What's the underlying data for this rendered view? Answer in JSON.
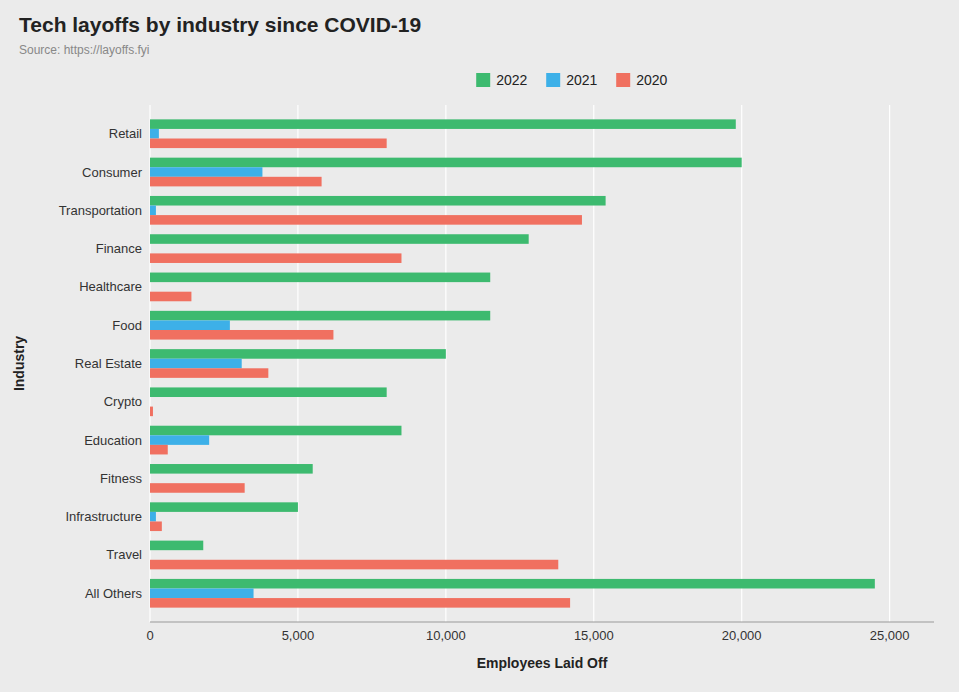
{
  "chart_data": {
    "type": "bar",
    "orientation": "horizontal",
    "title": "Tech layoffs by industry since COVID-19",
    "subtitle": "Source: https://layoffs.fyi",
    "xlabel": "Employees Laid Off",
    "ylabel": "Industry",
    "categories": [
      "All Others",
      "Travel",
      "Infrastructure",
      "Fitness",
      "Education",
      "Crypto",
      "Real Estate",
      "Food",
      "Healthcare",
      "Finance",
      "Transportation",
      "Consumer",
      "Retail"
    ],
    "series": [
      {
        "name": "2022",
        "color": "#3dba6f",
        "values": [
          24500,
          1800,
          5000,
          5500,
          8500,
          8000,
          10000,
          11500,
          11500,
          12800,
          15400,
          20000,
          19800
        ]
      },
      {
        "name": "2021",
        "color": "#3db0e8",
        "values": [
          3500,
          0,
          200,
          0,
          2000,
          0,
          3100,
          2700,
          0,
          0,
          200,
          3800,
          300
        ]
      },
      {
        "name": "2020",
        "color": "#f07060",
        "values": [
          14200,
          13800,
          400,
          3200,
          600,
          100,
          4000,
          6200,
          1400,
          8500,
          14600,
          5800,
          8000
        ]
      }
    ],
    "xlim": [
      0,
      26500
    ],
    "xticks": [
      0,
      {
        "value": 5000,
        "label": "5,000"
      },
      {
        "value": 10000,
        "label": "10,000"
      },
      {
        "value": 15000,
        "label": "15,000"
      },
      {
        "value": 20000,
        "label": "20,000"
      },
      {
        "value": 25000,
        "label": "25,000"
      }
    ],
    "grid": true,
    "legend": "top"
  }
}
